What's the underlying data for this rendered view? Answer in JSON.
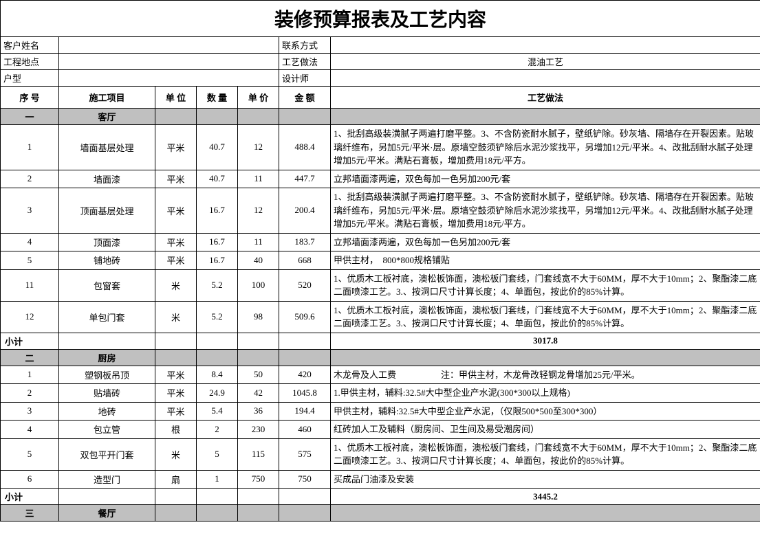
{
  "title": "装修预算报表及工艺内容",
  "header_labels": {
    "customer": "客户姓名",
    "contact": "联系方式",
    "location": "工程地点",
    "method": "工艺做法",
    "method_val": "混油工艺",
    "house_type": "户型",
    "designer": "设计师"
  },
  "columns": {
    "seq": "序 号",
    "item": "施工项目",
    "unit": "单 位",
    "qty": "数 量",
    "price": "单 价",
    "amount": "金 额",
    "desc": "工艺做法"
  },
  "sections": [
    {
      "seq": "一",
      "name": "客厅",
      "rows": [
        {
          "seq": "1",
          "item": "墙面基层处理",
          "unit": "平米",
          "qty": "40.7",
          "price": "12",
          "amt": "488.4",
          "desc": "1、批刮高级装潢腻子两遍打磨平整。3、不含防瓷耐水腻子，壁纸铲除。砂灰墙、隔墙存在开裂因素。贴玻璃纤维布，另加5元/平米·层。原墙空鼓须铲除后水泥沙浆找平，另增加12元/平米。4、改批刮耐水腻子处理增加5元/平米。满贴石膏板，增加费用18元/平方。"
        },
        {
          "seq": "2",
          "item": "墙面漆",
          "unit": "平米",
          "qty": "40.7",
          "price": "11",
          "amt": "447.7",
          "desc": "立邦墙面漆两遍，双色每加一色另加200元/套"
        },
        {
          "seq": "3",
          "item": "顶面基层处理",
          "unit": "平米",
          "qty": "16.7",
          "price": "12",
          "amt": "200.4",
          "desc": "1、批刮高级装潢腻子两遍打磨平整。3、不含防瓷耐水腻子，壁纸铲除。砂灰墙、隔墙存在开裂因素。贴玻璃纤维布，另加5元/平米·层。原墙空鼓须铲除后水泥沙浆找平，另增加12元/平米。4、改批刮耐水腻子处理增加5元/平米。满贴石膏板，增加费用18元/平方。"
        },
        {
          "seq": "4",
          "item": "顶面漆",
          "unit": "平米",
          "qty": "16.7",
          "price": "11",
          "amt": "183.7",
          "desc": "立邦墙面漆两遍，双色每加一色另加200元/套"
        },
        {
          "seq": "5",
          "item": "铺地砖",
          "unit": "平米",
          "qty": "16.7",
          "price": "40",
          "amt": "668",
          "desc": "甲供主材，　800*800规格铺贴"
        },
        {
          "seq": "11",
          "item": "包窗套",
          "unit": "米",
          "qty": "5.2",
          "price": "100",
          "amt": "520",
          "desc": "1、优质木工板衬底，澳松板饰面，澳松板门套线，门套线宽不大于60MM，厚不大于10mm；2、聚酯漆二底二面喷漆工艺。3.、按洞口尺寸计算长度；4、单面包，按此价的85%计算。"
        },
        {
          "seq": "12",
          "item": "单包门套",
          "unit": "米",
          "qty": "5.2",
          "price": "98",
          "amt": "509.6",
          "desc": "1、优质木工板衬底，澳松板饰面，澳松板门套线，门套线宽不大于60MM，厚不大于10mm；2、聚酯漆二底二面喷漆工艺。3.、按洞口尺寸计算长度；4、单面包，按此价的85%计算。"
        }
      ],
      "subtotal_label": "小计",
      "subtotal": "3017.8"
    },
    {
      "seq": "二",
      "name": "厨房",
      "rows": [
        {
          "seq": "1",
          "item": "塑钢板吊顶",
          "unit": "平米",
          "qty": "8.4",
          "price": "50",
          "amt": "420",
          "desc": "木龙骨及人工费　　　　　注：甲供主材，木龙骨改轻钢龙骨增加25元/平米。"
        },
        {
          "seq": "2",
          "item": "贴墙砖",
          "unit": "平米",
          "qty": "24.9",
          "price": "42",
          "amt": "1045.8",
          "desc": "1.甲供主材，辅料:32.5#大中型企业产水泥(300*300以上规格)"
        },
        {
          "seq": "3",
          "item": "地砖",
          "unit": "平米",
          "qty": "5.4",
          "price": "36",
          "amt": "194.4",
          "desc": "甲供主材，辅料:32.5#大中型企业产水泥，（仅限500*500至300*300）"
        },
        {
          "seq": "4",
          "item": "包立管",
          "unit": "根",
          "qty": "2",
          "price": "230",
          "amt": "460",
          "desc": "红砖加人工及辅料（厨房间、卫生间及易受潮房间）"
        },
        {
          "seq": "5",
          "item": "双包平开门套",
          "unit": "米",
          "qty": "5",
          "price": "115",
          "amt": "575",
          "desc": "1、优质木工板衬底，澳松板饰面，澳松板门套线，门套线宽不大于60MM，厚不大于10mm；2、聚酯漆二底二面喷漆工艺。3.、按洞口尺寸计算长度；4、单面包，按此价的85%计算。"
        },
        {
          "seq": "6",
          "item": "造型门",
          "unit": "扇",
          "qty": "1",
          "price": "750",
          "amt": "750",
          "desc": "买成品门油漆及安装"
        }
      ],
      "subtotal_label": "小计",
      "subtotal": "3445.2"
    },
    {
      "seq": "三",
      "name": "餐厅",
      "rows": [],
      "subtotal_label": "",
      "subtotal": ""
    }
  ]
}
